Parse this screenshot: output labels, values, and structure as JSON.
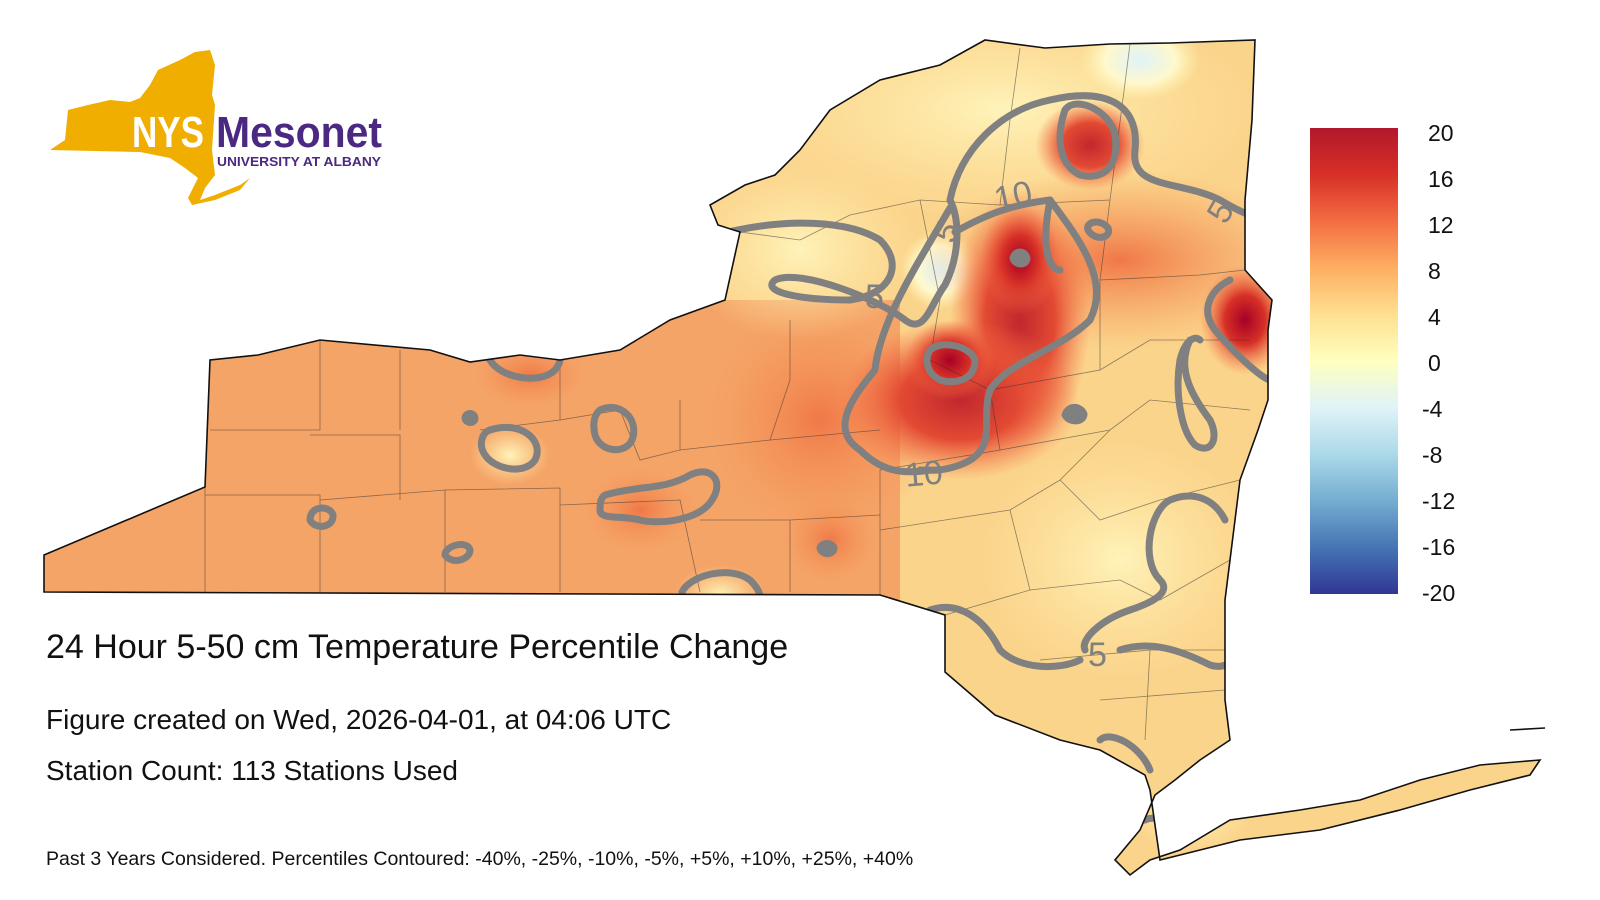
{
  "logo": {
    "abbr": "NYS",
    "name": "Mesonet",
    "subtitle": "UNIVERSITY AT ALBANY",
    "state_color": "#F0AE00",
    "text_color": "#4B2882"
  },
  "map": {
    "title": "24 Hour 5-50 cm Temperature Percentile Change",
    "created": "Figure created on Wed, 2026-04-01, at 04:06 UTC",
    "stations": "Station Count: 113 Stations Used",
    "footnote": "Past 3 Years Considered. Percentiles Contoured: -40%, -25%, -10%, -5%, +5%, +10%, +25%, +40%",
    "contour_labels": [
      "5",
      "5",
      "10",
      "10",
      "5",
      "5"
    ]
  },
  "colorbar": {
    "ticks": [
      "20",
      "16",
      "12",
      "8",
      "4",
      "0",
      "-4",
      "-8",
      "-12",
      "-16",
      "-20"
    ],
    "colors": [
      "#B2182B",
      "#D73027",
      "#F46D43",
      "#FDAE61",
      "#FEE090",
      "#FFFFBF",
      "#E0F3F8",
      "#ABD9E9",
      "#74ADD1",
      "#4575B4",
      "#313695"
    ]
  }
}
